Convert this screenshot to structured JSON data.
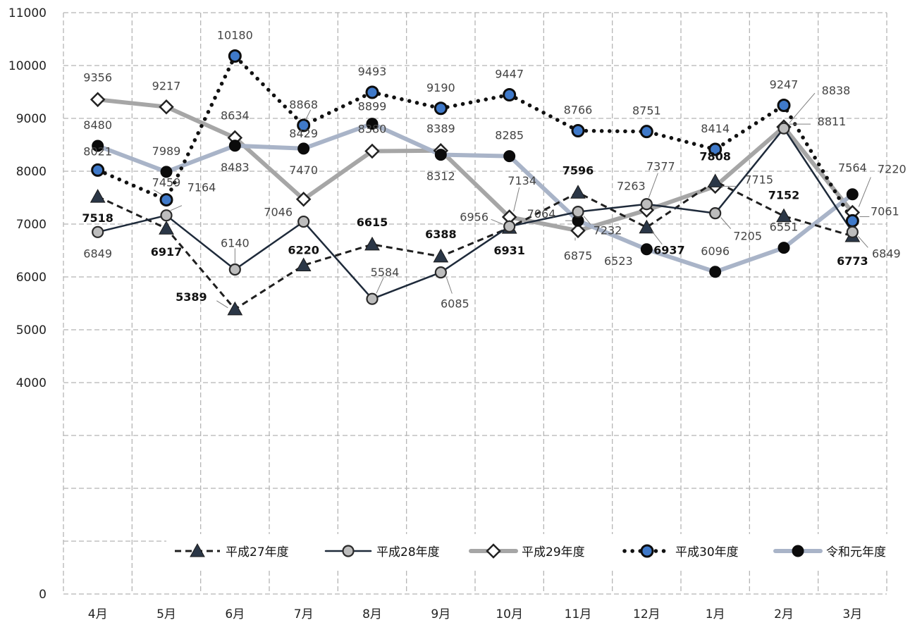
{
  "chart_data": {
    "type": "line",
    "categories": [
      "4月",
      "5月",
      "6月",
      "7月",
      "8月",
      "9月",
      "10月",
      "11月",
      "12月",
      "1月",
      "2月",
      "3月"
    ],
    "ylim": [
      0,
      11000
    ],
    "yticks": [
      0,
      4000,
      5000,
      6000,
      7000,
      8000,
      9000,
      10000,
      11000
    ],
    "grid": true,
    "legend_position": "bottom-right",
    "series": [
      {
        "name": "平成27年度",
        "values": [
          7518,
          6917,
          5389,
          6220,
          6615,
          6388,
          6931,
          7596,
          6937,
          7808,
          7152,
          6773
        ],
        "color": "#1f1f1f",
        "marker": "triangle",
        "style": "dashed"
      },
      {
        "name": "平成28年度",
        "values": [
          6849,
          7164,
          6140,
          7046,
          5584,
          6085,
          6956,
          7232,
          7377,
          7205,
          8811,
          6849
        ],
        "color": "#1e2a3a",
        "marker": "circle-gray",
        "style": "solid"
      },
      {
        "name": "平成29年度",
        "values": [
          9356,
          9217,
          8634,
          7470,
          8380,
          8389,
          7134,
          6875,
          7263,
          7715,
          8838,
          7220
        ],
        "color": "#a6a6a6",
        "marker": "diamond",
        "style": "thick"
      },
      {
        "name": "平成30年度",
        "values": [
          8021,
          7459,
          10180,
          8868,
          9493,
          9190,
          9447,
          8766,
          8751,
          8414,
          9247,
          7061
        ],
        "color": "#111111",
        "marker": "circle-blue",
        "style": "dotted"
      },
      {
        "name": "令和元年度",
        "values": [
          8480,
          7989,
          8483,
          8429,
          8899,
          8312,
          8285,
          7064,
          6523,
          6096,
          6551,
          7564
        ],
        "color": "#a9b4c8",
        "marker": "circle-black",
        "style": "thick"
      }
    ]
  }
}
